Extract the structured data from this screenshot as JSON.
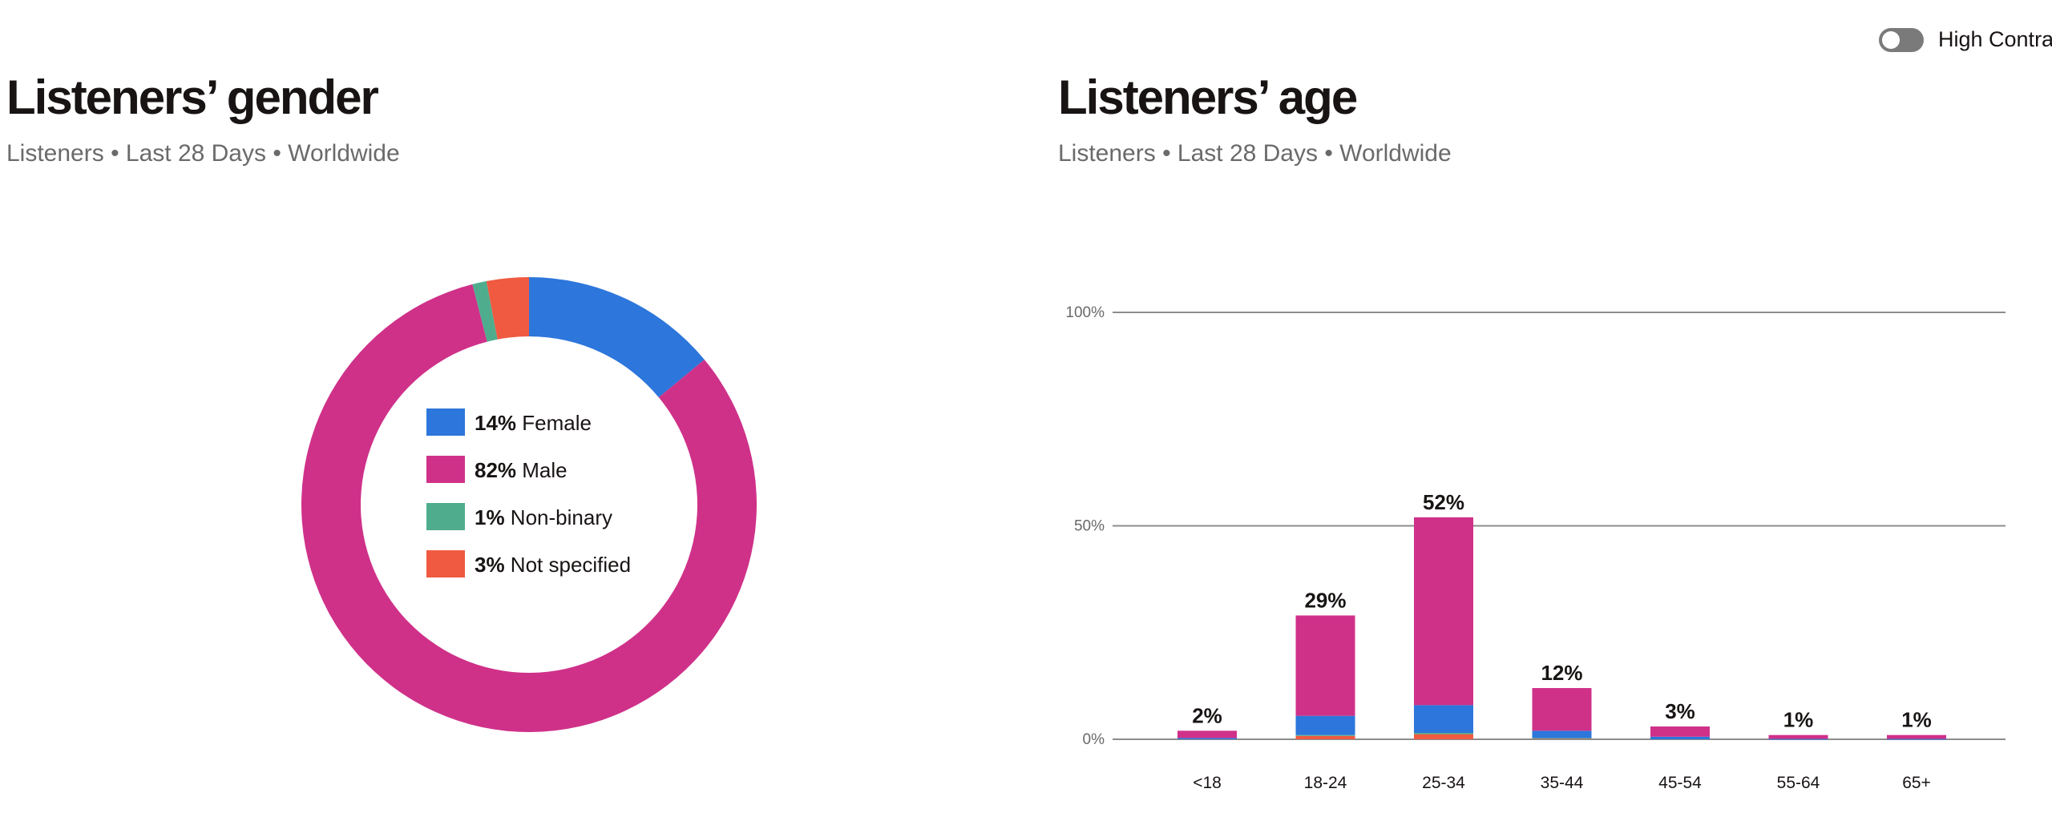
{
  "high_contrast": {
    "label": "High Contrast",
    "enabled": false
  },
  "gender_panel": {
    "title": "Listeners’ gender",
    "subtitle": "Listeners • Last 28 Days • Worldwide"
  },
  "age_panel": {
    "title": "Listeners’ age",
    "subtitle": "Listeners • Last 28 Days • Worldwide"
  },
  "chart_data": [
    {
      "type": "pie",
      "donut": true,
      "title": "Listeners’ gender",
      "subtitle": "Listeners • Last 28 Days • Worldwide",
      "slices": [
        {
          "label": "Female",
          "value": 14,
          "display": "14%",
          "color": "#2d76db"
        },
        {
          "label": "Male",
          "value": 82,
          "display": "82%",
          "color": "#cf3189"
        },
        {
          "label": "Non-binary",
          "value": 1,
          "display": "1%",
          "color": "#4fad8e"
        },
        {
          "label": "Not specified",
          "value": 3,
          "display": "3%",
          "color": "#ef5a41"
        }
      ],
      "legend": "center"
    },
    {
      "type": "bar",
      "stacked": true,
      "title": "Listeners’ age",
      "subtitle": "Listeners • Last 28 Days • Worldwide",
      "categories": [
        "<18",
        "18-24",
        "25-34",
        "35-44",
        "45-54",
        "55-64",
        "65+"
      ],
      "totals": [
        2,
        29,
        52,
        12,
        3,
        1,
        1
      ],
      "total_labels": [
        "2%",
        "29%",
        "52%",
        "12%",
        "3%",
        "1%",
        "1%"
      ],
      "series": [
        {
          "color": "#ef5a41",
          "values": [
            0,
            0.8,
            1.2,
            0.2,
            0,
            0,
            0
          ]
        },
        {
          "color": "#4fad8e",
          "values": [
            0,
            0.2,
            0.3,
            0.1,
            0,
            0,
            0
          ]
        },
        {
          "color": "#2d76db",
          "values": [
            0.3,
            4.5,
            6.5,
            1.7,
            0.6,
            0.1,
            0.1
          ]
        },
        {
          "color": "#cf3189",
          "values": [
            1.7,
            23.5,
            44,
            10,
            2.4,
            0.9,
            0.9
          ]
        }
      ],
      "ylim": [
        0,
        100
      ],
      "yticks": [
        0,
        50,
        100
      ],
      "ytick_labels": [
        "0%",
        "50%",
        "100%"
      ],
      "grid": true
    }
  ]
}
